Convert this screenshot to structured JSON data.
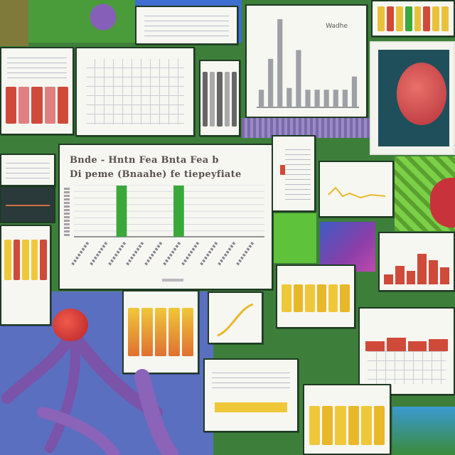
{
  "collage": {
    "main_chart": {
      "title_line_1": "Bnde - Hntn  Fea Bnta  Fea b",
      "title_line_2": "Di peme (Bnaahe) fe tiepeyfiate",
      "chart_data": {
        "type": "bar",
        "categories": [
          "",
          "",
          "",
          "",
          "",
          "",
          "",
          "",
          "",
          ""
        ],
        "values": [
          0,
          0,
          1,
          0,
          0,
          1,
          0,
          0,
          0,
          0
        ],
        "title": "",
        "xlabel": "",
        "ylabel": "",
        "ylim": [
          0,
          1
        ],
        "grid": true
      }
    },
    "top_chart": {
      "legend_label": "Wadhe",
      "chart_data": {
        "type": "bar",
        "categories": [
          "",
          "",
          "",
          "",
          "",
          "",
          "",
          "",
          "",
          "",
          ""
        ],
        "values": [
          0.2,
          0.55,
          1.0,
          0.22,
          0.65,
          0.2,
          0.2,
          0.2,
          0.2,
          0.2,
          0.35
        ],
        "ylim": [
          0,
          1
        ]
      }
    },
    "colors": {
      "background": "#3d7f3a",
      "bar_green": "#3aa83a",
      "bar_gray": "#9ea0a6",
      "bar_red": "#d04a3a",
      "stripe_yellow": "#efc83a",
      "tentacle_purple": "#7b53a8",
      "bulb_red": "#d8322a"
    }
  }
}
